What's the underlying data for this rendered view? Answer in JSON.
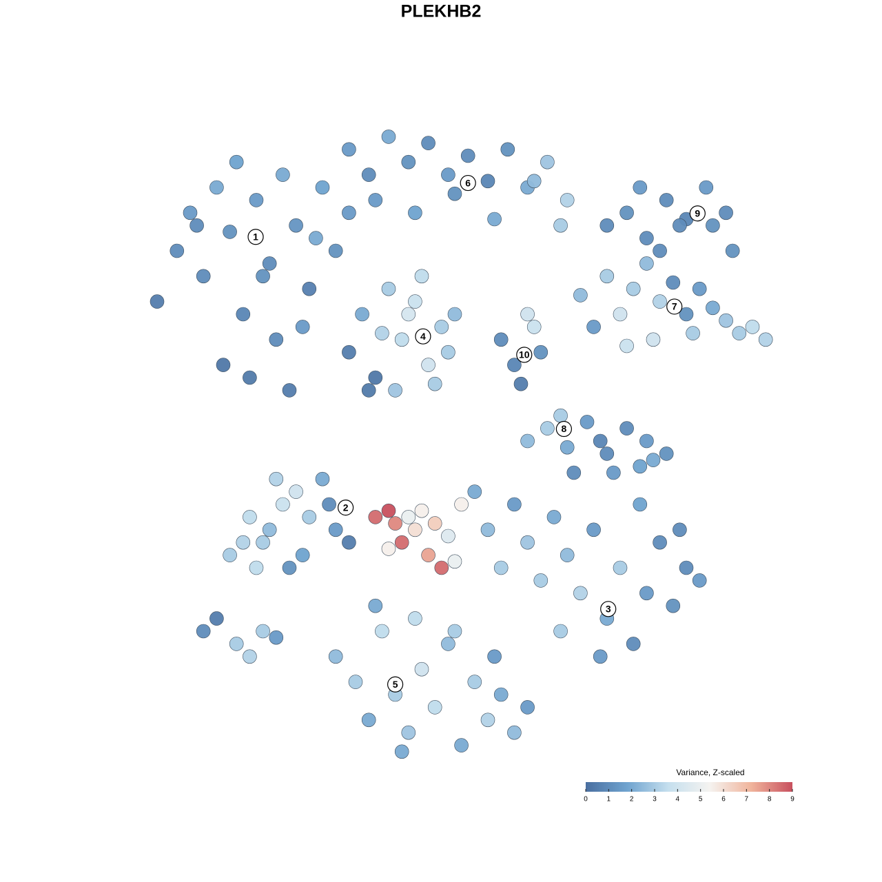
{
  "chart_data": {
    "type": "scatter",
    "title": "PLEKHB2",
    "xlim": [
      0,
      100
    ],
    "ylim": [
      0,
      100
    ],
    "series": [
      {
        "x": [
          5,
          8,
          10,
          12,
          14,
          16,
          18,
          20,
          22,
          24,
          26,
          28,
          30,
          32,
          34,
          15,
          19,
          23,
          27,
          11,
          17,
          25,
          29,
          21,
          34,
          37,
          40,
          43,
          46,
          49,
          52,
          55,
          58,
          61,
          64,
          67,
          38,
          44,
          50,
          56,
          62,
          66,
          34,
          36,
          38,
          40,
          42,
          44,
          46,
          48,
          50,
          37,
          41,
          45,
          49,
          39,
          43,
          47,
          57,
          59,
          61,
          63,
          60,
          62,
          69,
          71,
          73,
          75,
          77,
          79,
          81,
          83,
          85,
          87,
          89,
          91,
          93,
          95,
          97,
          76,
          80,
          86,
          73,
          76,
          79,
          82,
          85,
          88,
          91,
          92,
          78,
          84,
          89,
          81,
          61,
          64,
          67,
          70,
          73,
          76,
          79,
          82,
          68,
          74,
          78,
          72,
          80,
          66,
          16,
          18,
          20,
          22,
          24,
          26,
          28,
          30,
          32,
          34,
          19,
          23,
          27,
          31,
          21,
          25,
          38,
          40,
          41,
          42,
          43,
          44,
          45,
          46,
          47,
          48,
          49,
          51,
          40,
          50,
          53,
          55,
          57,
          59,
          61,
          63,
          65,
          67,
          69,
          71,
          73,
          75,
          77,
          79,
          81,
          83,
          85,
          87,
          66,
          72,
          78,
          84,
          32,
          35,
          37,
          39,
          41,
          43,
          45,
          47,
          49,
          51,
          53,
          55,
          57,
          59,
          61,
          38,
          44,
          50,
          56,
          42,
          12,
          14,
          17,
          19,
          21,
          23
        ],
        "y": [
          72,
          80,
          86,
          76,
          90,
          83,
          70,
          88,
          78,
          92,
          84,
          74,
          90,
          80,
          86,
          62,
          60,
          66,
          68,
          84,
          94,
          58,
          82,
          76,
          96,
          92,
          98,
          94,
          97,
          92,
          95,
          91,
          96,
          90,
          94,
          88,
          88,
          86,
          89,
          85,
          91,
          84,
          64,
          70,
          60,
          74,
          66,
          72,
          62,
          68,
          70,
          58,
          58,
          76,
          64,
          67,
          70,
          59,
          66,
          62,
          70,
          64,
          59,
          68,
          73,
          68,
          76,
          70,
          74,
          78,
          72,
          75,
          70,
          74,
          71,
          69,
          67,
          68,
          66,
          65,
          66,
          67,
          84,
          86,
          82,
          88,
          85,
          90,
          86,
          80,
          90,
          84,
          84,
          80,
          50,
          52,
          49,
          53,
          48,
          52,
          50,
          48,
          45,
          45,
          46,
          50,
          47,
          54,
          32,
          34,
          30,
          36,
          40,
          42,
          38,
          44,
          36,
          34,
          38,
          44,
          32,
          40,
          34,
          30,
          38,
          39,
          37,
          34,
          38,
          36,
          39,
          32,
          37,
          30,
          35,
          40,
          33,
          31,
          42,
          36,
          30,
          40,
          34,
          28,
          38,
          32,
          26,
          36,
          22,
          30,
          18,
          26,
          34,
          24,
          30,
          28,
          20,
          16,
          40,
          36,
          16,
          12,
          6,
          20,
          10,
          4,
          14,
          8,
          18,
          2,
          12,
          6,
          10,
          4,
          8,
          24,
          22,
          20,
          16,
          1,
          20,
          22,
          18,
          16,
          20,
          19
        ],
        "values": [
          0.5,
          1,
          1.5,
          1,
          2,
          1.2,
          0.8,
          1.5,
          1,
          2,
          1.3,
          0.6,
          1.8,
          1.2,
          1.5,
          0.3,
          0.4,
          1,
          1.5,
          1,
          1.8,
          0.5,
          2,
          1.2,
          1.5,
          1,
          2,
          1.2,
          1,
          1.5,
          1,
          0.8,
          1.2,
          2,
          2.8,
          3.2,
          1.5,
          1.8,
          1.2,
          2,
          2.5,
          3,
          0.5,
          2,
          0.3,
          3,
          3.5,
          3.8,
          4,
          3,
          2.5,
          0.4,
          2.8,
          3.5,
          3,
          3.2,
          4.2,
          3,
          1,
          0.8,
          4,
          1.2,
          0.5,
          3.8,
          2.5,
          1.5,
          3,
          4,
          3,
          2.5,
          3.2,
          1,
          1.2,
          1.5,
          2,
          2.8,
          3,
          3.5,
          3.2,
          3.8,
          4,
          3,
          1,
          1.2,
          1,
          1,
          0.8,
          1.5,
          1,
          1.2,
          1.5,
          1,
          1.2,
          1,
          2.5,
          3,
          2,
          1.5,
          1,
          1,
          1.5,
          1.2,
          1,
          1.5,
          1.8,
          0.8,
          2,
          3,
          3,
          3.2,
          3.5,
          2.5,
          3.8,
          4,
          3,
          2,
          1.5,
          0.5,
          3.5,
          3.2,
          1.8,
          1,
          3,
          1.2,
          8.5,
          9,
          8,
          8.5,
          5,
          6,
          5.5,
          7.5,
          6.5,
          8.5,
          4.5,
          5.5,
          5.5,
          5,
          2,
          2.5,
          3,
          1.5,
          2.8,
          3,
          2,
          2.5,
          3.2,
          1.5,
          2,
          3,
          1,
          1.5,
          1,
          1.2,
          1,
          1.5,
          3,
          1.5,
          1.8,
          1,
          2.5,
          3,
          2,
          3.5,
          3,
          2.8,
          4,
          3.5,
          2.5,
          2,
          3,
          3.2,
          2,
          2.5,
          1.5,
          2,
          3.5,
          3,
          1.5,
          2,
          1,
          0.5,
          3,
          3.2,
          3,
          1.5
        ]
      }
    ],
    "annotations": [
      {
        "label": "1",
        "x": 19.9,
        "y": 82.2
      },
      {
        "label": "2",
        "x": 33.5,
        "y": 39.5
      },
      {
        "label": "3",
        "x": 73.2,
        "y": 23.5
      },
      {
        "label": "4",
        "x": 45.2,
        "y": 66.5
      },
      {
        "label": "5",
        "x": 41.0,
        "y": 11.6
      },
      {
        "label": "6",
        "x": 52.0,
        "y": 90.7
      },
      {
        "label": "7",
        "x": 83.2,
        "y": 71.2
      },
      {
        "label": "8",
        "x": 66.5,
        "y": 51.9
      },
      {
        "label": "9",
        "x": 86.7,
        "y": 85.9
      },
      {
        "label": "10",
        "x": 60.5,
        "y": 63.6
      }
    ],
    "colorbar": {
      "title": "Variance, Z-scaled",
      "clim": [
        0,
        9
      ],
      "ticks": [
        0,
        1,
        2,
        3,
        4,
        5,
        6,
        7,
        8,
        9
      ],
      "colors": [
        "#4a6fa0",
        "#6fa3cf",
        "#c5dfee",
        "#f5f3f0",
        "#f0b49c",
        "#c8505e"
      ]
    }
  }
}
